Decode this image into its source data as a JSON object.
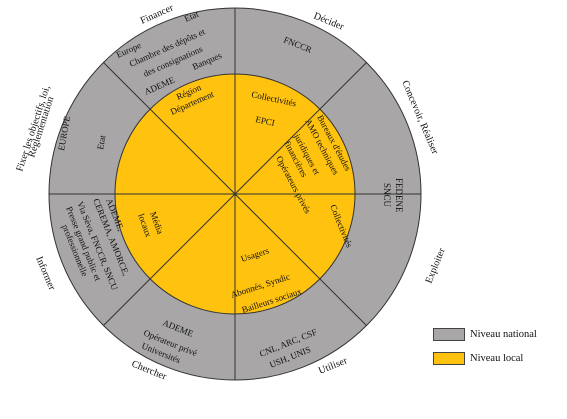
{
  "colors": {
    "national": "#a8a6a7",
    "local": "#fec20f",
    "stroke": "#333333"
  },
  "outer_labels": {
    "financer": "Financer",
    "decider": "Décider",
    "concevoir": "Concevoir, Réaliser",
    "exploiter": "Exploiter",
    "utiliser": "Utiliser",
    "chercher": "Chercher",
    "informer": "Informer",
    "fixer": [
      "Fixer les objectifs, loi,",
      "Réglementation"
    ]
  },
  "national_ring": {
    "financer_lines": [
      "Etat",
      "Europe",
      "Chambre des dépôts et",
      "des consignations",
      "ADEME",
      "Banques"
    ],
    "decider": "FNCCR",
    "concevoir": [
      "FEDENE",
      "SNCU"
    ],
    "utiliser": [
      "CNL, ARC, CSF",
      "USH, UNIS"
    ],
    "chercher": [
      "ADEME",
      "Opérateur privé",
      "Universités"
    ],
    "informer": [
      "ADEME,",
      "CEREMA, AMORCE,",
      "Via Sèva, FNCCR, SNCU",
      "Presse grand public et",
      "professionnelle"
    ],
    "fixer": [
      "EUROPE",
      "Etat"
    ]
  },
  "local_core": {
    "financer": [
      "Région",
      "Département"
    ],
    "decider": [
      "Collectivités",
      "EPCI"
    ],
    "concevoir": [
      "Bureaux d'études",
      "AMO techniques",
      "juridiques et",
      "financières",
      "Opérateurs privés"
    ],
    "exploiter": "Collectivités",
    "utiliser": [
      "Usagers",
      "Abonnés, Syndic",
      "Bailleurs sociaux"
    ],
    "informer": [
      "Média",
      "locaux"
    ]
  },
  "legend": [
    {
      "label": "Niveau national",
      "color": "#a8a6a7"
    },
    {
      "label": "Niveau local",
      "color": "#fec20f"
    }
  ]
}
